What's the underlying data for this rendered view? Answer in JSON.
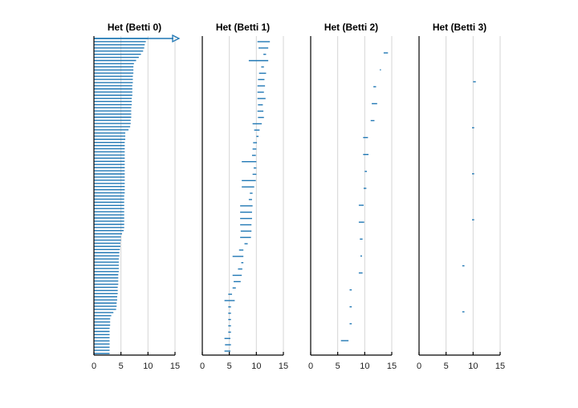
{
  "chart_data": [
    {
      "type": "barcode",
      "title": "Het (Betti 0)",
      "xlim": [
        0,
        15
      ],
      "xticks": [
        0,
        5,
        10,
        15
      ],
      "grid": true,
      "color": "#1f77b4",
      "infinite_bar": {
        "birth": 0,
        "label": "arrow"
      },
      "bars": [
        [
          0,
          10
        ],
        [
          0,
          9.6
        ],
        [
          0,
          9.4
        ],
        [
          0,
          9.3
        ],
        [
          0,
          9.1
        ],
        [
          0,
          8.7
        ],
        [
          0,
          8.3
        ],
        [
          0,
          7.8
        ],
        [
          0,
          7.4
        ],
        [
          0,
          7.3
        ],
        [
          0,
          7.3
        ],
        [
          0,
          7.3
        ],
        [
          0,
          7.2
        ],
        [
          0,
          7.2
        ],
        [
          0,
          7.2
        ],
        [
          0,
          7.1
        ],
        [
          0,
          7.1
        ],
        [
          0,
          7.1
        ],
        [
          0,
          7.1
        ],
        [
          0,
          7.0
        ],
        [
          0,
          7.0
        ],
        [
          0,
          7.0
        ],
        [
          0,
          6.9
        ],
        [
          0,
          6.9
        ],
        [
          0,
          6.9
        ],
        [
          0,
          6.9
        ],
        [
          0,
          6.8
        ],
        [
          0,
          6.8
        ],
        [
          0,
          6.7
        ],
        [
          0,
          6.4
        ],
        [
          0,
          5.8
        ],
        [
          0,
          5.8
        ],
        [
          0,
          5.8
        ],
        [
          0,
          5.7
        ],
        [
          0,
          5.7
        ],
        [
          0,
          5.7
        ],
        [
          0,
          5.7
        ],
        [
          0,
          5.7
        ],
        [
          0,
          5.7
        ],
        [
          0,
          5.7
        ],
        [
          0,
          5.7
        ],
        [
          0,
          5.7
        ],
        [
          0,
          5.7
        ],
        [
          0,
          5.7
        ],
        [
          0,
          5.7
        ],
        [
          0,
          5.7
        ],
        [
          0,
          5.7
        ],
        [
          0,
          5.7
        ],
        [
          0,
          5.7
        ],
        [
          0,
          5.7
        ],
        [
          0,
          5.6
        ],
        [
          0,
          5.6
        ],
        [
          0,
          5.6
        ],
        [
          0,
          5.6
        ],
        [
          0,
          5.6
        ],
        [
          0,
          5.6
        ],
        [
          0,
          5.6
        ],
        [
          0,
          5.6
        ],
        [
          0,
          5.6
        ],
        [
          0,
          5.6
        ],
        [
          0,
          5.6
        ],
        [
          0,
          5.5
        ],
        [
          0,
          5.2
        ],
        [
          0,
          5.0
        ],
        [
          0,
          5.0
        ],
        [
          0,
          4.9
        ],
        [
          0,
          4.9
        ],
        [
          0,
          4.8
        ],
        [
          0,
          4.7
        ],
        [
          0,
          4.7
        ],
        [
          0,
          4.6
        ],
        [
          0,
          4.6
        ],
        [
          0,
          4.6
        ],
        [
          0,
          4.6
        ],
        [
          0,
          4.6
        ],
        [
          0,
          4.5
        ],
        [
          0,
          4.5
        ],
        [
          0,
          4.5
        ],
        [
          0,
          4.5
        ],
        [
          0,
          4.4
        ],
        [
          0,
          4.4
        ],
        [
          0,
          4.4
        ],
        [
          0,
          4.3
        ],
        [
          0,
          4.3
        ],
        [
          0,
          4.2
        ],
        [
          0,
          4.2
        ],
        [
          0,
          4.1
        ],
        [
          0,
          3.6
        ],
        [
          0,
          3.2
        ],
        [
          0,
          3.0
        ],
        [
          0,
          3.0
        ],
        [
          0,
          3.0
        ],
        [
          0,
          2.9
        ],
        [
          0,
          2.9
        ],
        [
          0,
          2.9
        ],
        [
          0,
          2.9
        ],
        [
          0,
          2.9
        ],
        [
          0,
          2.9
        ],
        [
          0,
          2.9
        ],
        [
          0,
          2.9
        ],
        [
          0,
          2.9
        ]
      ]
    },
    {
      "type": "barcode",
      "title": "Het (Betti 1)",
      "xlim": [
        0,
        15
      ],
      "xticks": [
        0,
        5,
        10,
        15
      ],
      "grid": true,
      "color": "#1f77b4",
      "bars": [
        [
          10.2,
          12.5
        ],
        [
          10.4,
          12.2
        ],
        [
          11.3,
          11.8
        ],
        [
          8.6,
          12.2
        ],
        [
          10.9,
          11.4
        ],
        [
          10.5,
          11.8
        ],
        [
          10.3,
          11.5
        ],
        [
          10.2,
          11.6
        ],
        [
          10.2,
          11.4
        ],
        [
          10.2,
          11.7
        ],
        [
          10.3,
          11.2
        ],
        [
          10.2,
          11.3
        ],
        [
          10.3,
          11.4
        ],
        [
          9.3,
          11.0
        ],
        [
          9.6,
          10.6
        ],
        [
          10.0,
          10.4
        ],
        [
          9.4,
          10.1
        ],
        [
          9.3,
          10.0
        ],
        [
          9.2,
          9.9
        ],
        [
          7.3,
          10.0
        ],
        [
          9.5,
          10.0
        ],
        [
          9.3,
          10.0
        ],
        [
          7.3,
          9.9
        ],
        [
          7.3,
          9.6
        ],
        [
          8.8,
          9.3
        ],
        [
          8.6,
          9.2
        ],
        [
          7.0,
          9.3
        ],
        [
          7.0,
          9.2
        ],
        [
          7.0,
          9.2
        ],
        [
          7.0,
          9.1
        ],
        [
          7.1,
          9.1
        ],
        [
          7.0,
          9.0
        ],
        [
          7.8,
          8.4
        ],
        [
          6.8,
          7.6
        ],
        [
          5.6,
          7.6
        ],
        [
          7.2,
          7.6
        ],
        [
          6.6,
          7.4
        ],
        [
          5.6,
          7.3
        ],
        [
          5.8,
          7.1
        ],
        [
          5.6,
          6.2
        ],
        [
          4.8,
          5.5
        ],
        [
          4.1,
          6.0
        ],
        [
          4.8,
          5.3
        ],
        [
          4.8,
          5.3
        ],
        [
          4.8,
          5.3
        ],
        [
          4.8,
          5.3
        ],
        [
          4.8,
          5.3
        ],
        [
          4.1,
          5.2
        ],
        [
          4.2,
          5.3
        ],
        [
          4.1,
          5.2
        ]
      ]
    },
    {
      "type": "barcode",
      "title": "Het (Betti 2)",
      "xlim": [
        0,
        15
      ],
      "xticks": [
        0,
        5,
        10,
        15
      ],
      "grid": true,
      "color": "#1f77b4",
      "bars": [
        [
          13.5,
          14.3
        ],
        [
          12.8,
          13.0
        ],
        [
          11.6,
          12.1
        ],
        [
          11.3,
          12.3
        ],
        [
          11.1,
          11.8
        ],
        [
          9.7,
          10.6
        ],
        [
          9.7,
          10.7
        ],
        [
          10.0,
          10.4
        ],
        [
          9.8,
          10.3
        ],
        [
          8.9,
          9.8
        ],
        [
          8.9,
          9.9
        ],
        [
          9.1,
          9.6
        ],
        [
          9.2,
          9.5
        ],
        [
          8.9,
          9.6
        ],
        [
          7.2,
          7.6
        ],
        [
          7.2,
          7.6
        ],
        [
          7.2,
          7.6
        ],
        [
          5.6,
          7.0
        ]
      ]
    },
    {
      "type": "barcode",
      "title": "Het (Betti 3)",
      "xlim": [
        0,
        15
      ],
      "xticks": [
        0,
        5,
        10,
        15
      ],
      "grid": true,
      "color": "#1f77b4",
      "bars": [
        [
          10.0,
          10.5
        ],
        [
          9.8,
          10.2
        ],
        [
          9.8,
          10.2
        ],
        [
          9.8,
          10.2
        ],
        [
          8.0,
          8.4
        ],
        [
          8.0,
          8.4
        ]
      ]
    }
  ]
}
